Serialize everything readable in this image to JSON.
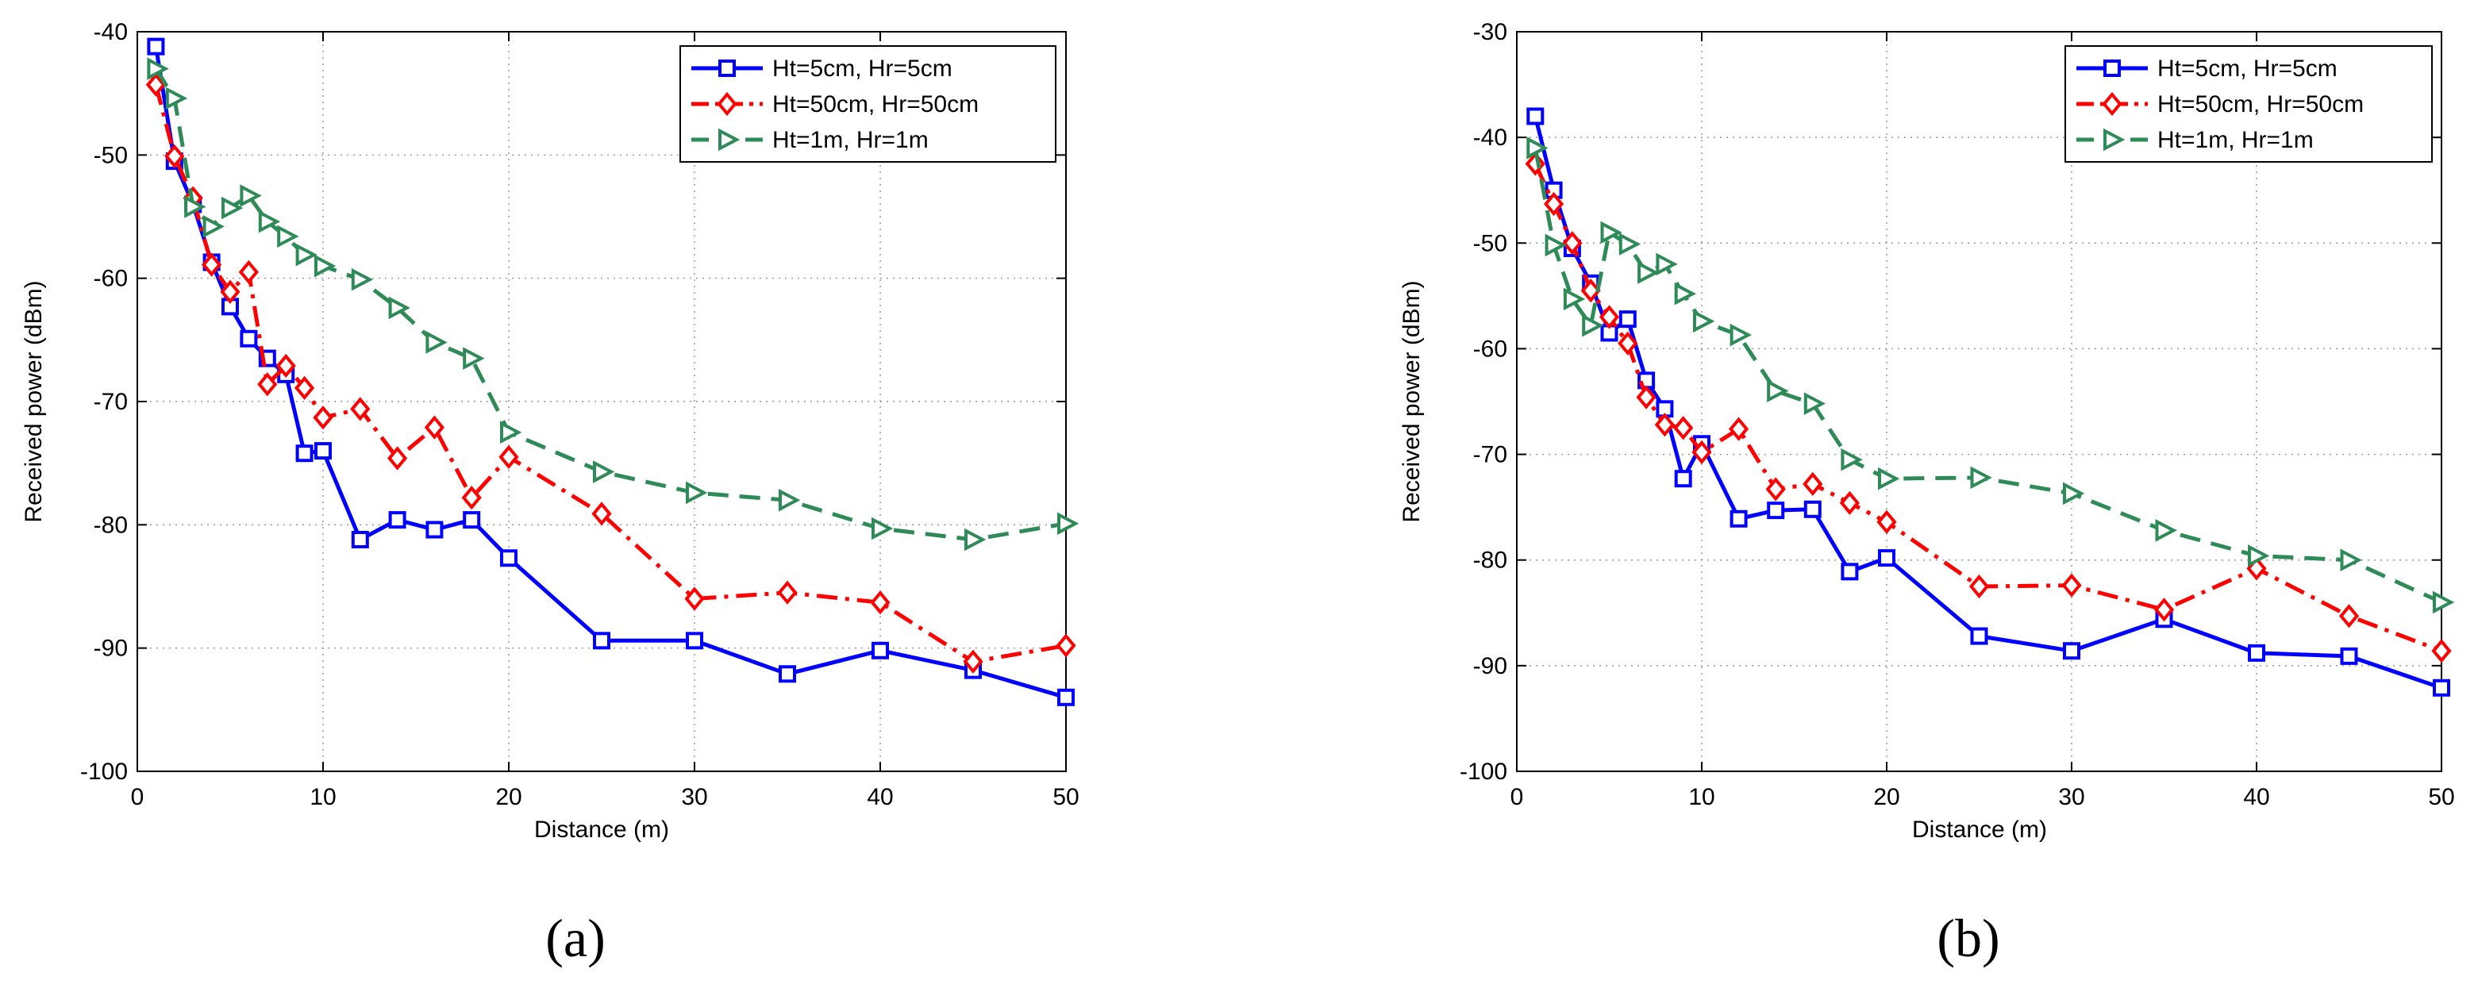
{
  "chart_data": [
    {
      "type": "line",
      "subtitle": "(a)",
      "xlabel": "Distance (m)",
      "ylabel": "Received power (dBm)",
      "xlim": [
        0,
        50
      ],
      "ylim": [
        -100,
        -40
      ],
      "xticks": [
        "0",
        "10",
        "20",
        "30",
        "40",
        "50"
      ],
      "yticks": [
        "-100",
        "-90",
        "-80",
        "-70",
        "-60",
        "-50",
        "-40"
      ],
      "grid": true,
      "legend_position": "top-right",
      "series": [
        {
          "name": "Ht=5cm, Hr=5cm",
          "color": "#0000ff",
          "style": "solid",
          "marker": "square",
          "x": [
            1,
            2,
            3,
            4,
            5,
            6,
            7,
            8,
            9,
            10,
            12,
            14,
            16,
            18,
            20,
            25,
            30,
            35,
            40,
            45,
            50
          ],
          "y": [
            -41.2,
            -50.5,
            -54,
            -58.7,
            -62.3,
            -64.9,
            -66.5,
            -67.8,
            -74.2,
            -74,
            -81.2,
            -79.6,
            -80.4,
            -79.6,
            -82.7,
            -89.4,
            -89.4,
            -92.1,
            -90.2,
            -91.8,
            -94
          ]
        },
        {
          "name": "Ht=50cm, Hr=50cm",
          "color": "#ff0000",
          "style": "dashdot",
          "marker": "diamond",
          "x": [
            1,
            2,
            3,
            4,
            5,
            6,
            7,
            8,
            9,
            10,
            12,
            14,
            16,
            18,
            20,
            25,
            30,
            35,
            40,
            45,
            50
          ],
          "y": [
            -44.3,
            -50.1,
            -53.5,
            -58.9,
            -61.1,
            -59.5,
            -68.6,
            -67.1,
            -68.9,
            -71.3,
            -70.6,
            -74.6,
            -72.1,
            -77.8,
            -74.5,
            -79.1,
            -86,
            -85.5,
            -86.3,
            -91.1,
            -89.8
          ]
        },
        {
          "name": "Ht=1m, Hr=1m",
          "color": "#2e8b57",
          "style": "dashed",
          "marker": "triangle-right",
          "x": [
            1,
            2,
            3,
            4,
            5,
            6,
            7,
            8,
            9,
            10,
            12,
            14,
            16,
            18,
            20,
            25,
            30,
            35,
            40,
            45,
            50
          ],
          "y": [
            -43,
            -45.4,
            -54.2,
            -55.8,
            -54.3,
            -53.3,
            -55.4,
            -56.6,
            -58.1,
            -59,
            -60.1,
            -62.4,
            -65.2,
            -66.5,
            -72.5,
            -75.7,
            -77.4,
            -78,
            -80.3,
            -81.2,
            -79.9
          ]
        }
      ]
    },
    {
      "type": "line",
      "subtitle": "(b)",
      "xlabel": "Distance (m)",
      "ylabel": "Received power (dBm)",
      "xlim": [
        0,
        50
      ],
      "ylim": [
        -100,
        -30
      ],
      "xticks": [
        "0",
        "10",
        "20",
        "30",
        "40",
        "50"
      ],
      "yticks": [
        "-100",
        "-90",
        "-80",
        "-70",
        "-60",
        "-50",
        "-40",
        "-30"
      ],
      "grid": true,
      "legend_position": "top-right",
      "series": [
        {
          "name": "Ht=5cm, Hr=5cm",
          "color": "#0000ff",
          "style": "solid",
          "marker": "square",
          "x": [
            1,
            2,
            3,
            4,
            5,
            6,
            7,
            8,
            9,
            10,
            12,
            14,
            16,
            18,
            20,
            25,
            30,
            35,
            40,
            45,
            50
          ],
          "y": [
            -38,
            -45,
            -50.5,
            -53.8,
            -58.5,
            -57.2,
            -63,
            -65.7,
            -72.3,
            -69,
            -76.1,
            -75.3,
            -75.2,
            -81.1,
            -79.8,
            -87.2,
            -88.6,
            -85.6,
            -88.8,
            -89.1,
            -92.1
          ]
        },
        {
          "name": "Ht=50cm, Hr=50cm",
          "color": "#ff0000",
          "style": "dashdot",
          "marker": "diamond",
          "x": [
            1,
            2,
            3,
            4,
            5,
            6,
            7,
            8,
            9,
            10,
            12,
            14,
            16,
            18,
            20,
            25,
            30,
            35,
            40,
            45,
            50
          ],
          "y": [
            -42.5,
            -46.3,
            -50,
            -54.5,
            -57,
            -59.5,
            -64.6,
            -67.2,
            -67.5,
            -69.8,
            -67.6,
            -73.3,
            -72.8,
            -74.6,
            -76.4,
            -82.5,
            -82.4,
            -84.7,
            -80.8,
            -85.3,
            -88.6
          ]
        },
        {
          "name": "Ht=1m, Hr=1m",
          "color": "#2e8b57",
          "style": "dashed",
          "marker": "triangle-right",
          "x": [
            1,
            2,
            3,
            4,
            5,
            6,
            7,
            8,
            9,
            10,
            12,
            14,
            16,
            18,
            20,
            25,
            30,
            35,
            40,
            45,
            50
          ],
          "y": [
            -41,
            -50.2,
            -55.3,
            -57.8,
            -49,
            -50.1,
            -52.8,
            -52,
            -54.8,
            -57.4,
            -58.7,
            -64,
            -65.2,
            -70.5,
            -72.3,
            -72.2,
            -73.7,
            -77.2,
            -79.6,
            -80,
            -84
          ]
        }
      ]
    }
  ]
}
